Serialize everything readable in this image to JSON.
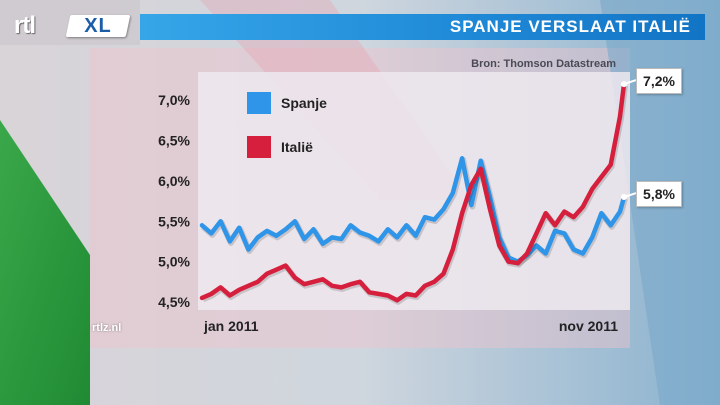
{
  "brand": {
    "logo_left": "rtl",
    "logo_right": "XL",
    "watermark": "rtlz.nl"
  },
  "header": {
    "title": "SPANJE VERSLAAT ITALIË"
  },
  "colors": {
    "spanje": "#2f95e8",
    "italie": "#d61f3c",
    "title_bar": "#1e88d6",
    "plot_bg": "#ede9ee"
  },
  "chart_data": {
    "type": "line",
    "title": "",
    "source": "Bron: Thomson Datastream",
    "xlabel": "",
    "ylabel": "",
    "x_tick_labels": [
      "jan 2011",
      "nov 2011"
    ],
    "y_tick_labels": [
      "7,0%",
      "6,5%",
      "6,0%",
      "5,5%",
      "5,0%",
      "4,5%"
    ],
    "y_ticks": [
      7.0,
      6.5,
      6.0,
      5.5,
      5.0,
      4.5
    ],
    "ylim": [
      4.4,
      7.35
    ],
    "legend_position": "top-left",
    "grid": false,
    "x": [
      "2011-01-03",
      "2011-01-10",
      "2011-01-17",
      "2011-01-24",
      "2011-01-31",
      "2011-02-07",
      "2011-02-14",
      "2011-02-21",
      "2011-02-28",
      "2011-03-07",
      "2011-03-14",
      "2011-03-21",
      "2011-03-28",
      "2011-04-04",
      "2011-04-11",
      "2011-04-18",
      "2011-04-25",
      "2011-05-02",
      "2011-05-09",
      "2011-05-16",
      "2011-05-23",
      "2011-05-30",
      "2011-06-06",
      "2011-06-13",
      "2011-06-20",
      "2011-06-27",
      "2011-07-04",
      "2011-07-11",
      "2011-07-18",
      "2011-07-25",
      "2011-08-01",
      "2011-08-08",
      "2011-08-15",
      "2011-08-22",
      "2011-08-29",
      "2011-09-05",
      "2011-09-12",
      "2011-09-19",
      "2011-09-26",
      "2011-10-03",
      "2011-10-10",
      "2011-10-17",
      "2011-10-24",
      "2011-10-31",
      "2011-11-07",
      "2011-11-14",
      "2011-11-17"
    ],
    "series": [
      {
        "name": "Spanje",
        "color_key": "spanje",
        "values": [
          5.45,
          5.35,
          5.5,
          5.25,
          5.42,
          5.15,
          5.3,
          5.38,
          5.32,
          5.4,
          5.5,
          5.28,
          5.4,
          5.22,
          5.3,
          5.28,
          5.45,
          5.36,
          5.32,
          5.25,
          5.4,
          5.3,
          5.45,
          5.32,
          5.55,
          5.52,
          5.65,
          5.85,
          6.28,
          5.7,
          6.25,
          5.8,
          5.3,
          5.05,
          5.0,
          5.08,
          5.2,
          5.1,
          5.38,
          5.35,
          5.15,
          5.1,
          5.3,
          5.6,
          5.45,
          5.62,
          5.8
        ],
        "end_label": "5,8%"
      },
      {
        "name": "Italië",
        "color_key": "italie",
        "values": [
          4.55,
          4.6,
          4.68,
          4.58,
          4.65,
          4.7,
          4.75,
          4.85,
          4.9,
          4.95,
          4.8,
          4.72,
          4.75,
          4.78,
          4.7,
          4.68,
          4.72,
          4.75,
          4.62,
          4.6,
          4.58,
          4.52,
          4.6,
          4.58,
          4.7,
          4.75,
          4.85,
          5.15,
          5.6,
          5.95,
          6.15,
          5.65,
          5.2,
          5.0,
          4.98,
          5.1,
          5.35,
          5.6,
          5.45,
          5.62,
          5.55,
          5.68,
          5.9,
          6.05,
          6.2,
          6.8,
          7.2
        ],
        "end_label": "7,2%"
      }
    ]
  }
}
